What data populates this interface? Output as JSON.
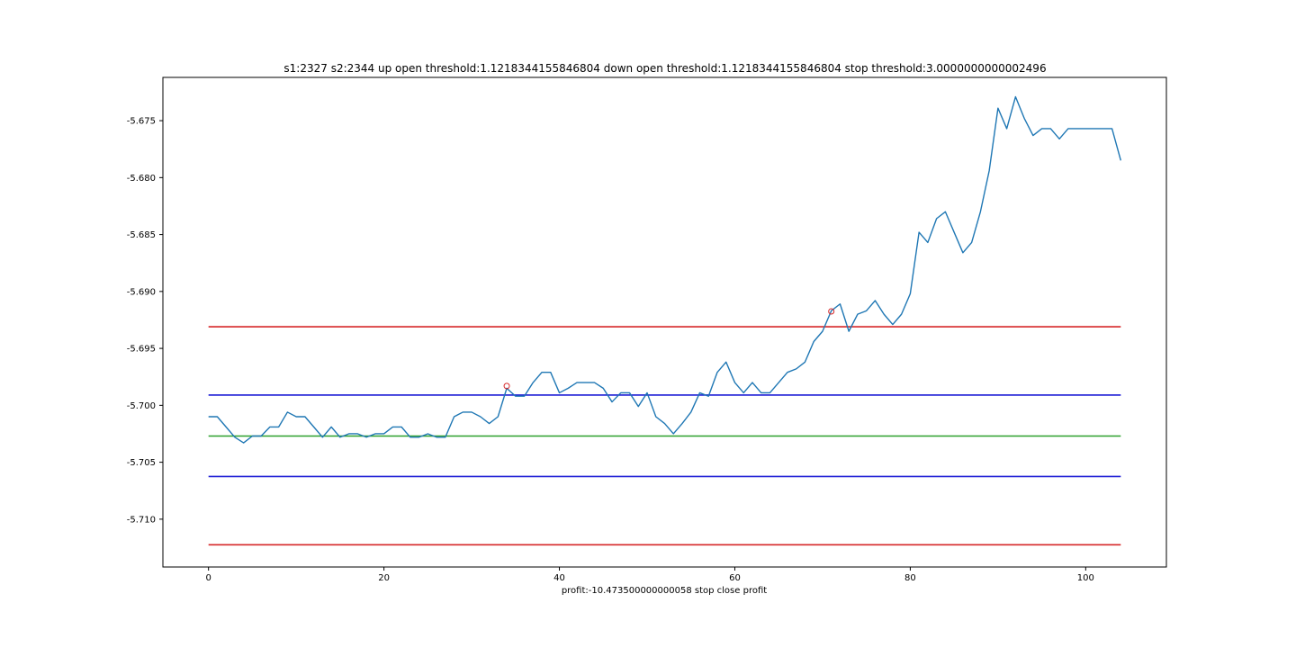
{
  "chart_data": {
    "type": "line",
    "title": "s1:2327 s2:2344 up open threshold:1.1218344155846804 down open threshold:1.1218344155846804 stop threshold:3.0000000000002496",
    "xlabel": "profit:-10.473500000000058 stop close profit",
    "ylabel": "",
    "xlim": [
      -5.2,
      109.2
    ],
    "ylim": [
      -5.7142,
      -5.6712
    ],
    "xticks": [
      0,
      20,
      40,
      60,
      80,
      100
    ],
    "yticks": [
      -5.675,
      -5.68,
      -5.685,
      -5.69,
      -5.695,
      -5.7,
      -5.705,
      -5.71
    ],
    "xtick_labels": [
      "0",
      "20",
      "40",
      "60",
      "80",
      "100"
    ],
    "ytick_labels": [
      "-5.675",
      "-5.680",
      "-5.685",
      "-5.690",
      "-5.695",
      "-5.700",
      "-5.705",
      "-5.710"
    ],
    "grid": false,
    "series": [
      {
        "color": "#1f77b4",
        "values": [
          -5.701,
          -5.701,
          -5.7019,
          -5.7028,
          -5.7033,
          -5.7027,
          -5.7027,
          -5.7019,
          -5.7019,
          -5.7006,
          -5.701,
          -5.701,
          -5.7019,
          -5.7028,
          -5.7019,
          -5.7028,
          -5.7025,
          -5.7025,
          -5.7028,
          -5.7025,
          -5.7025,
          -5.7019,
          -5.7019,
          -5.7028,
          -5.7028,
          -5.7025,
          -5.7028,
          -5.7028,
          -5.701,
          -5.7006,
          -5.7006,
          -5.701,
          -5.7016,
          -5.701,
          -5.6985,
          -5.6992,
          -5.6992,
          -5.698,
          -5.6971,
          -5.6971,
          -5.6989,
          -5.6985,
          -5.698,
          -5.698,
          -5.698,
          -5.6985,
          -5.6997,
          -5.6989,
          -5.6989,
          -5.7001,
          -5.6989,
          -5.701,
          -5.7016,
          -5.7025,
          -5.7016,
          -5.7006,
          -5.6989,
          -5.6992,
          -5.6971,
          -5.6962,
          -5.698,
          -5.6989,
          -5.698,
          -5.6989,
          -5.6989,
          -5.698,
          -5.6971,
          -5.6968,
          -5.6962,
          -5.6944,
          -5.6935,
          -5.6917,
          -5.6911,
          -5.6935,
          -5.692,
          -5.6917,
          -5.6908,
          -5.692,
          -5.6929,
          -5.692,
          -5.6902,
          -5.6848,
          -5.6857,
          -5.6836,
          -5.683,
          -5.6848,
          -5.6866,
          -5.6857,
          -5.683,
          -5.6794,
          -5.6739,
          -5.6757,
          -5.6729,
          -5.6748,
          -5.6763,
          -5.6757,
          -5.6757,
          -5.6766,
          -5.6757,
          -5.6757,
          -5.6757,
          -5.6757,
          -5.6757,
          -5.6757,
          -5.6785
        ]
      }
    ],
    "hlines": [
      {
        "y": -5.6931,
        "color": "#d62728"
      },
      {
        "y": -5.6991,
        "color": "#1f1fd6"
      },
      {
        "y": -5.7027,
        "color": "#2ca02c"
      },
      {
        "y": -5.70625,
        "color": "#1f1fd6"
      },
      {
        "y": -5.71225,
        "color": "#d62728"
      }
    ],
    "markers": [
      {
        "x": 34,
        "y": -5.6983,
        "color": "#d62728"
      },
      {
        "x": 71,
        "y": -5.69175,
        "color": "#d62728"
      }
    ]
  }
}
